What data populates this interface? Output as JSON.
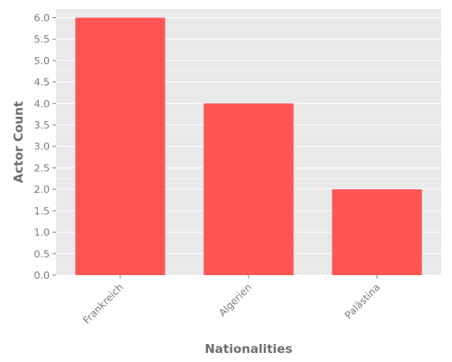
{
  "chart_data": {
    "type": "bar",
    "categories": [
      "Frankreich",
      "Algerien",
      "Palästina"
    ],
    "values": [
      6,
      4,
      2
    ],
    "title": "",
    "xlabel": "Nationalities",
    "ylabel": "Actor Count",
    "ylim": [
      0,
      6.2
    ],
    "yticks": [
      "0.0",
      "0.5",
      "1.0",
      "1.5",
      "2.0",
      "2.5",
      "3.0",
      "3.5",
      "4.0",
      "4.5",
      "5.0",
      "5.5",
      "6.0"
    ],
    "grid": true,
    "legend": "none",
    "colors": {
      "bar": "#ff5555",
      "panel_background": "#e9e9e9",
      "gridline": "#ffffff",
      "text": "#7a7a7a"
    }
  }
}
